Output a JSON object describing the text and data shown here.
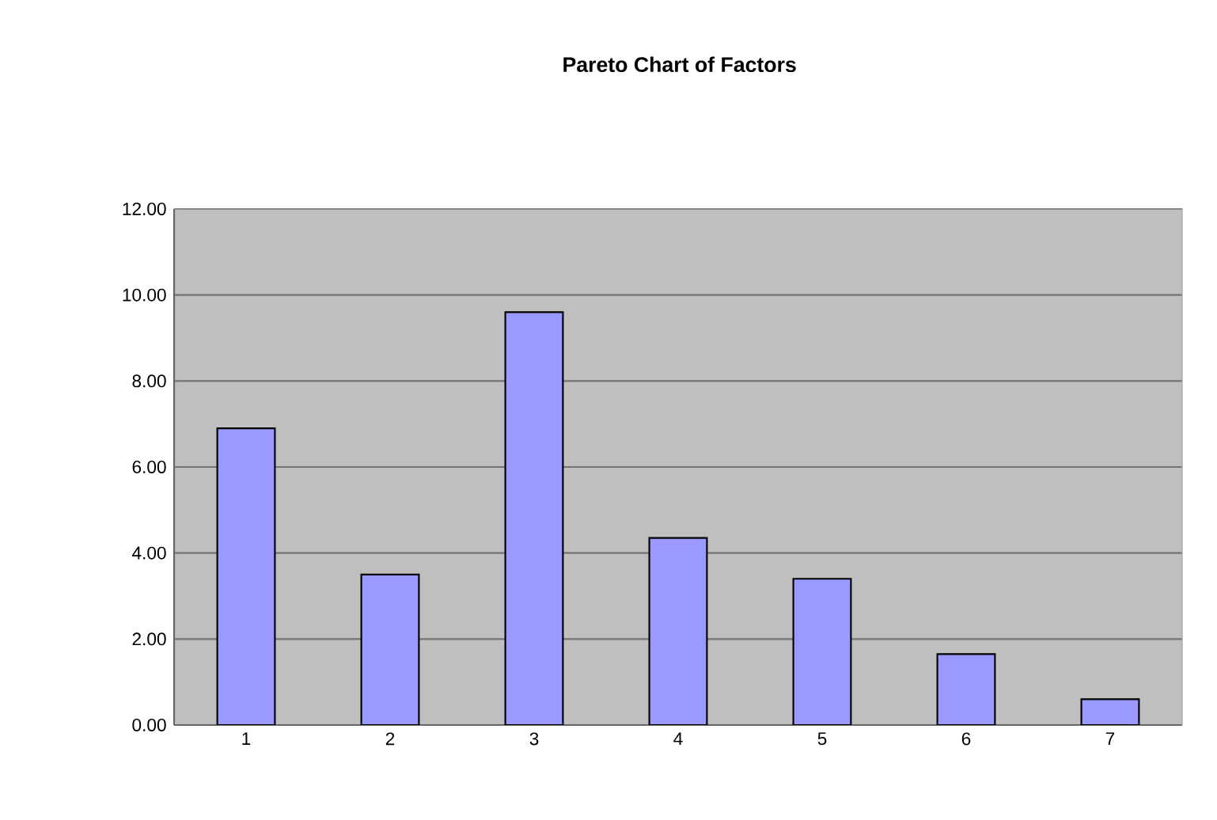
{
  "chart_data": {
    "type": "bar",
    "title": "**Pareto Chart of Factors**",
    "categories": [
      "1",
      "2",
      "3",
      "4",
      "5",
      "6",
      "7"
    ],
    "values": [
      6.9,
      3.5,
      9.6,
      4.35,
      3.4,
      1.65,
      0.6
    ],
    "color": "#9999ff",
    "ylim": [
      0,
      12
    ],
    "yticks": [
      {
        "value": 0,
        "label": "0.00"
      },
      {
        "value": 2,
        "label": "2.00"
      },
      {
        "value": 4,
        "label": "4.00"
      },
      {
        "value": 6,
        "label": "6.00"
      },
      {
        "value": 8,
        "label": "8.00"
      },
      {
        "value": 10,
        "label": "10.00"
      },
      {
        "value": 12,
        "label": "12.00"
      }
    ],
    "grid": "y"
  }
}
